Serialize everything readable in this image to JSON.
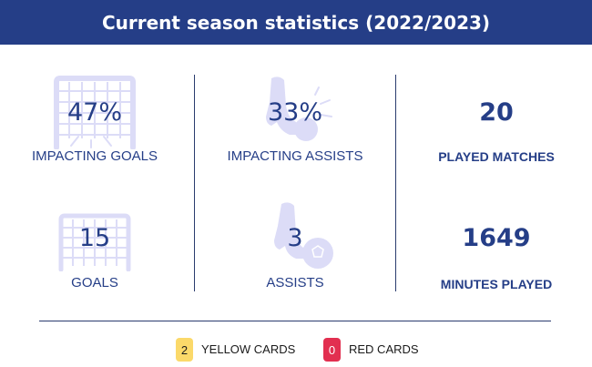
{
  "header": {
    "title": "Current season statistics (2022/2023)"
  },
  "stats": {
    "impacting_goals": {
      "value": "47%",
      "label": "IMPACTING GOALS",
      "icon": "goal-net-icon"
    },
    "impacting_assists": {
      "value": "33%",
      "label": "IMPACTING ASSISTS",
      "icon": "boot-ball-icon"
    },
    "played_matches": {
      "value": "20",
      "label": "PLAYED MATCHES"
    },
    "goals": {
      "value": "15",
      "label": "GOALS",
      "icon": "goal-net-icon"
    },
    "assists": {
      "value": "3",
      "label": "ASSISTS",
      "icon": "boot-ball-icon"
    },
    "minutes_played": {
      "value": "1649",
      "label": "MINUTES PLAYED"
    }
  },
  "cards": {
    "yellow": {
      "count": "2",
      "label": "YELLOW CARDS",
      "color": "#fbd96a"
    },
    "red": {
      "count": "0",
      "label": "RED CARDS",
      "color": "#e22f50"
    }
  },
  "colors": {
    "primary": "#253e87",
    "icon": "#dcdcf7"
  }
}
